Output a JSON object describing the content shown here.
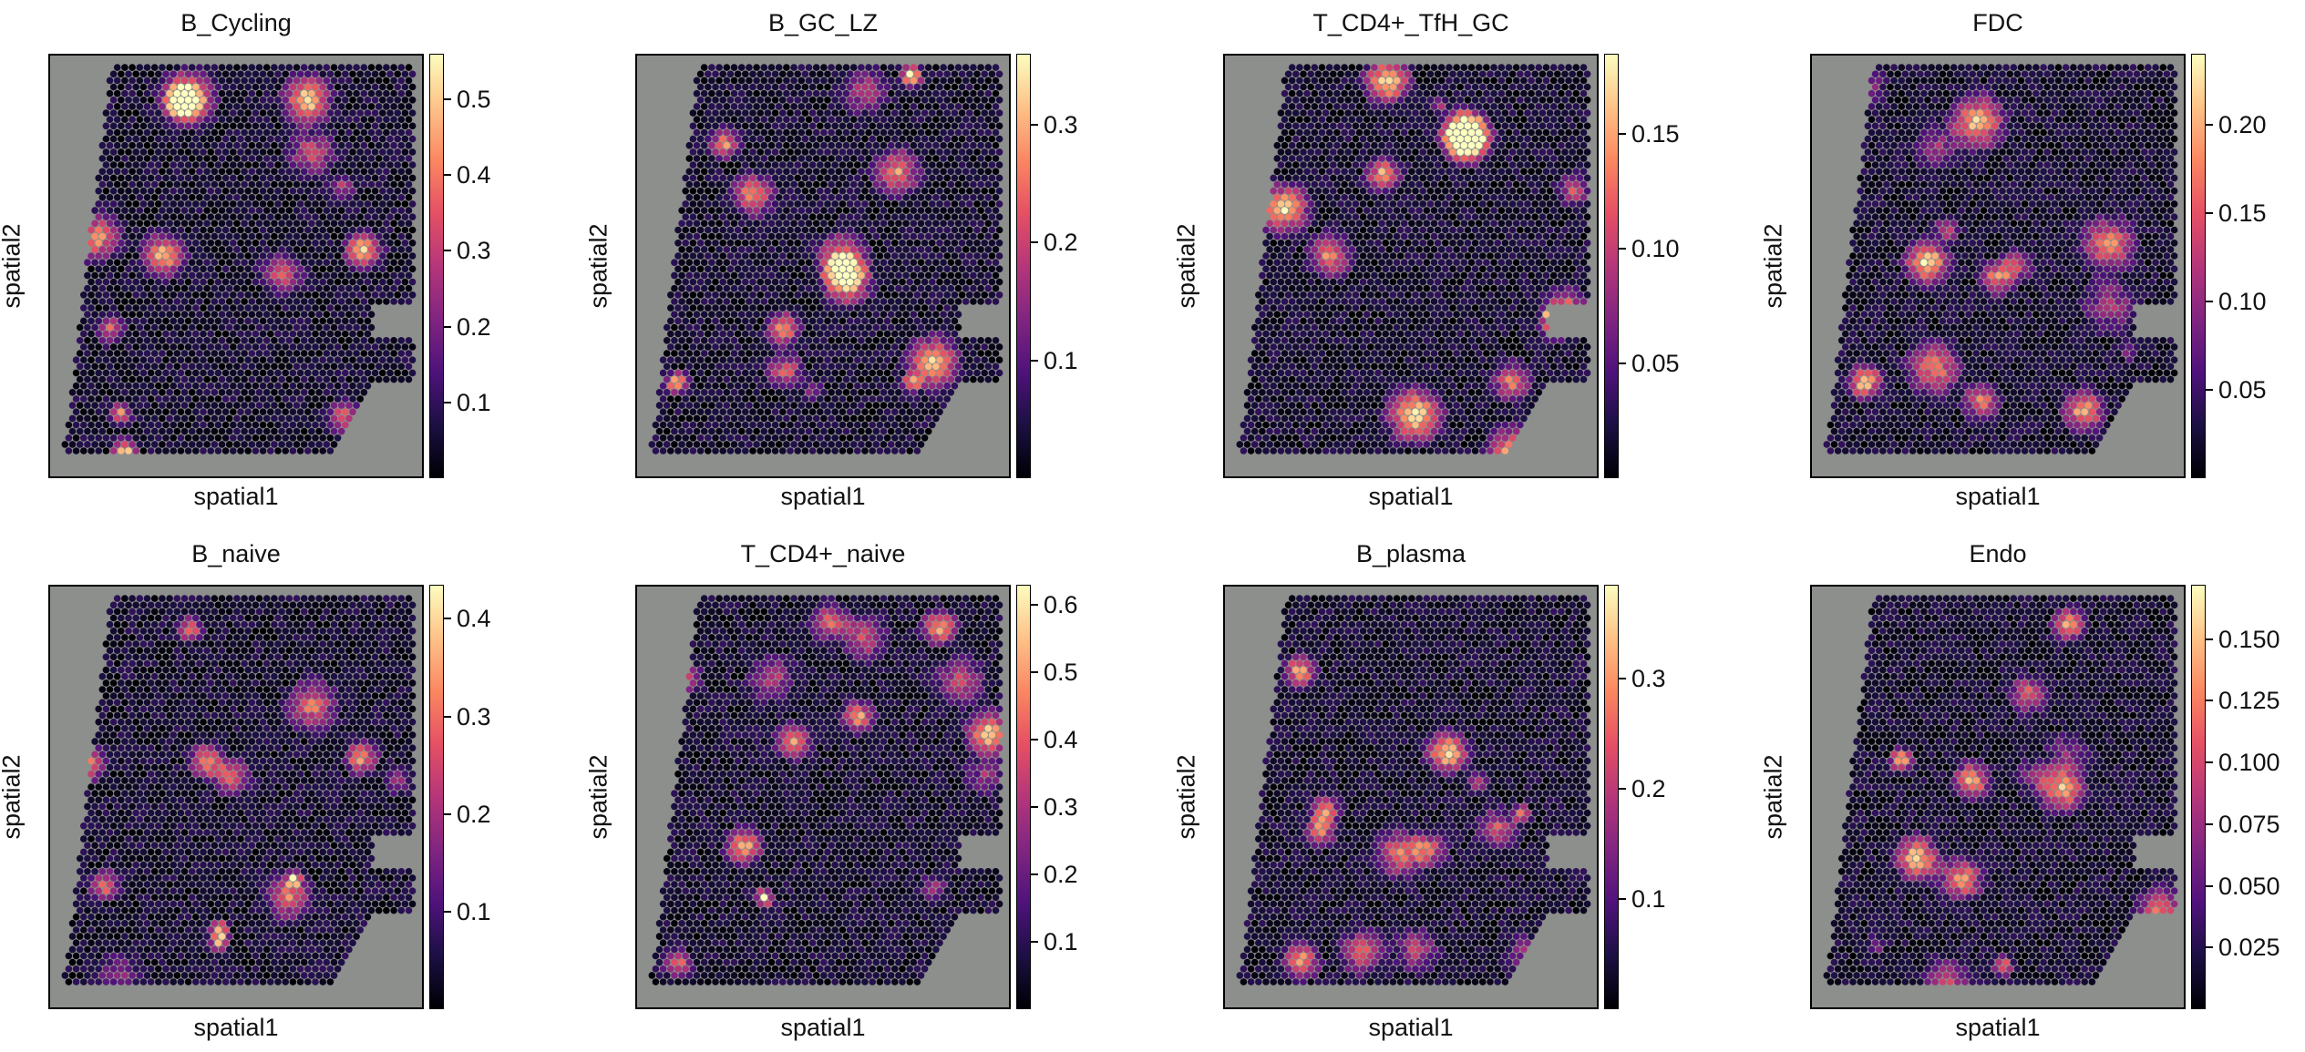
{
  "chart_data": [
    {
      "type": "heatmap",
      "title": "B_Cycling",
      "xlabel": "spatial1",
      "ylabel": "spatial2",
      "colormap": "magma",
      "colorbar_ticks": [
        "0.1",
        "0.2",
        "0.3",
        "0.4",
        "0.5"
      ],
      "colorbar_tick_values": [
        0.1,
        0.2,
        0.3,
        0.4,
        0.5
      ],
      "vmin": 0.0,
      "vmax": 0.56
    },
    {
      "type": "heatmap",
      "title": "B_GC_LZ",
      "xlabel": "spatial1",
      "ylabel": "spatial2",
      "colormap": "magma",
      "colorbar_ticks": [
        "0.1",
        "0.2",
        "0.3"
      ],
      "colorbar_tick_values": [
        0.1,
        0.2,
        0.3
      ],
      "vmin": 0.0,
      "vmax": 0.36
    },
    {
      "type": "heatmap",
      "title": "T_CD4+_TfH_GC",
      "xlabel": "spatial1",
      "ylabel": "spatial2",
      "colormap": "magma",
      "colorbar_ticks": [
        "0.05",
        "0.10",
        "0.15"
      ],
      "colorbar_tick_values": [
        0.05,
        0.1,
        0.15
      ],
      "vmin": 0.0,
      "vmax": 0.185
    },
    {
      "type": "heatmap",
      "title": "FDC",
      "xlabel": "spatial1",
      "ylabel": "spatial2",
      "colormap": "magma",
      "colorbar_ticks": [
        "0.05",
        "0.10",
        "0.15",
        "0.20"
      ],
      "colorbar_tick_values": [
        0.05,
        0.1,
        0.15,
        0.2
      ],
      "vmin": 0.0,
      "vmax": 0.24
    },
    {
      "type": "heatmap",
      "title": "B_naive",
      "xlabel": "spatial1",
      "ylabel": "spatial2",
      "colormap": "magma",
      "colorbar_ticks": [
        "0.1",
        "0.2",
        "0.3",
        "0.4"
      ],
      "colorbar_tick_values": [
        0.1,
        0.2,
        0.3,
        0.4
      ],
      "vmin": 0.0,
      "vmax": 0.435
    },
    {
      "type": "heatmap",
      "title": "T_CD4+_naive",
      "xlabel": "spatial1",
      "ylabel": "spatial2",
      "colormap": "magma",
      "colorbar_ticks": [
        "0.1",
        "0.2",
        "0.3",
        "0.4",
        "0.5",
        "0.6"
      ],
      "colorbar_tick_values": [
        0.1,
        0.2,
        0.3,
        0.4,
        0.5,
        0.6
      ],
      "vmin": 0.0,
      "vmax": 0.63
    },
    {
      "type": "heatmap",
      "title": "B_plasma",
      "xlabel": "spatial1",
      "ylabel": "spatial2",
      "colormap": "magma",
      "colorbar_ticks": [
        "0.1",
        "0.2",
        "0.3"
      ],
      "colorbar_tick_values": [
        0.1,
        0.2,
        0.3
      ],
      "vmin": 0.0,
      "vmax": 0.385
    },
    {
      "type": "heatmap",
      "title": "Endo",
      "xlabel": "spatial1",
      "ylabel": "spatial2",
      "colormap": "magma",
      "colorbar_ticks": [
        "0.025",
        "0.050",
        "0.075",
        "0.100",
        "0.125",
        "0.150"
      ],
      "colorbar_tick_values": [
        0.025,
        0.05,
        0.075,
        0.1,
        0.125,
        0.15
      ],
      "vmin": 0.0,
      "vmax": 0.172
    }
  ]
}
